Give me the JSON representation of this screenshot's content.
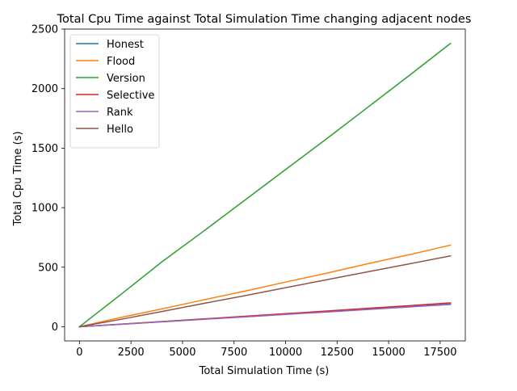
{
  "chart_data": {
    "type": "line",
    "title": "Total Cpu Time against Total Simulation Time changing adjacent nodes",
    "xlabel": "Total Simulation Time (s)",
    "ylabel": "Total Cpu Time (s)",
    "xlim": [
      -720,
      18720
    ],
    "ylim": [
      -119,
      2500
    ],
    "xticks": [
      0,
      2500,
      5000,
      7500,
      10000,
      12500,
      15000,
      17500
    ],
    "xtick_labels": [
      "0",
      "2500",
      "5000",
      "7500",
      "10000",
      "12500",
      "15000",
      "17500"
    ],
    "yticks": [
      0,
      500,
      1000,
      1500,
      2000,
      2500
    ],
    "ytick_labels": [
      "0",
      "500",
      "1000",
      "1500",
      "2000",
      "2500"
    ],
    "grid": false,
    "legend_position": "top-left",
    "x": [
      0,
      2000,
      4000,
      6000,
      8000,
      10000,
      12000,
      14000,
      16000,
      18000
    ],
    "series": [
      {
        "name": "Honest",
        "color": "#1f77b4",
        "values": [
          0,
          21,
          42,
          63,
          84,
          105,
          126,
          147,
          168,
          190
        ]
      },
      {
        "name": "Flood",
        "color": "#ff7f0e",
        "values": [
          0,
          78,
          150,
          225,
          298,
          375,
          450,
          530,
          605,
          685
        ]
      },
      {
        "name": "Version",
        "color": "#2ca02c",
        "values": [
          0,
          270,
          545,
          800,
          1060,
          1320,
          1580,
          1845,
          2110,
          2380
        ]
      },
      {
        "name": "Selective",
        "color": "#d62728",
        "values": [
          0,
          22,
          44,
          66,
          88,
          110,
          132,
          155,
          177,
          200
        ]
      },
      {
        "name": "Rank",
        "color": "#9467bd",
        "values": [
          0,
          20,
          41,
          62,
          82,
          103,
          124,
          145,
          166,
          187
        ]
      },
      {
        "name": "Hello",
        "color": "#8c564b",
        "values": [
          0,
          62,
          128,
          195,
          260,
          328,
          395,
          462,
          528,
          595
        ]
      }
    ]
  }
}
